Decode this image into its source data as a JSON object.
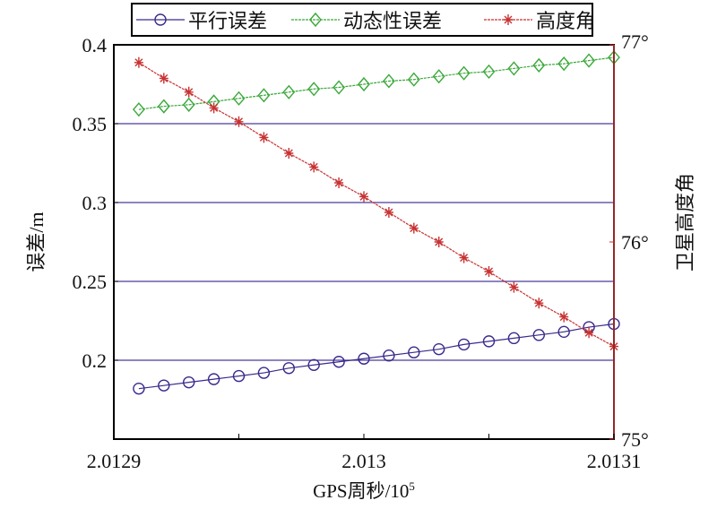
{
  "chart_data": {
    "type": "line",
    "title": "",
    "xlabel": "GPS周秒/10",
    "xlabel_sup": "5",
    "ylabel": "误差/m",
    "y2label": "卫星高度角",
    "xlim": [
      2.0129,
      2.0131
    ],
    "ylim": [
      0.15,
      0.4
    ],
    "y2lim": [
      75,
      77
    ],
    "xticks": [
      2.0129,
      2.013,
      2.0131
    ],
    "xtick_labels": [
      "2.0129",
      "2.013",
      "2.0131"
    ],
    "yticks": [
      0.2,
      0.25,
      0.3,
      0.35,
      0.4
    ],
    "ytick_labels": [
      "0.2",
      "0.25",
      "0.3",
      "0.35",
      "0.4"
    ],
    "y2ticks": [
      75,
      76,
      77
    ],
    "y2tick_labels": [
      "75°",
      "76°",
      "77°"
    ],
    "grid_y": [
      0.2,
      0.25,
      0.3,
      0.35
    ],
    "legend_position": "top",
    "x": [
      2.01291,
      2.01292,
      2.01293,
      2.01294,
      2.01295,
      2.01296,
      2.01297,
      2.01298,
      2.01299,
      2.013,
      2.01301,
      2.01302,
      2.01303,
      2.01304,
      2.01305,
      2.01306,
      2.01307,
      2.01308,
      2.01309,
      2.0131
    ],
    "series": [
      {
        "name": "平行误差",
        "axis": "left",
        "color": "#3a2a8c",
        "marker": "circle",
        "values": [
          0.182,
          0.184,
          0.186,
          0.188,
          0.19,
          0.192,
          0.195,
          0.197,
          0.199,
          0.201,
          0.203,
          0.205,
          0.207,
          0.21,
          0.212,
          0.214,
          0.216,
          0.218,
          0.221,
          0.223
        ]
      },
      {
        "name": "动态性误差",
        "axis": "left",
        "color": "#3aa83a",
        "marker": "diamond",
        "values": [
          0.359,
          0.361,
          0.362,
          0.364,
          0.366,
          0.368,
          0.37,
          0.372,
          0.373,
          0.375,
          0.377,
          0.378,
          0.38,
          0.382,
          0.383,
          0.385,
          0.387,
          0.388,
          0.39,
          0.392
        ]
      },
      {
        "name": "高度角",
        "axis": "right",
        "color": "#c83232",
        "marker": "asterisk",
        "values": [
          76.91,
          76.83,
          76.76,
          76.68,
          76.61,
          76.53,
          76.45,
          76.38,
          76.3,
          76.23,
          76.15,
          76.07,
          76.0,
          75.92,
          75.85,
          75.77,
          75.69,
          75.62,
          75.54,
          75.47
        ]
      }
    ]
  }
}
